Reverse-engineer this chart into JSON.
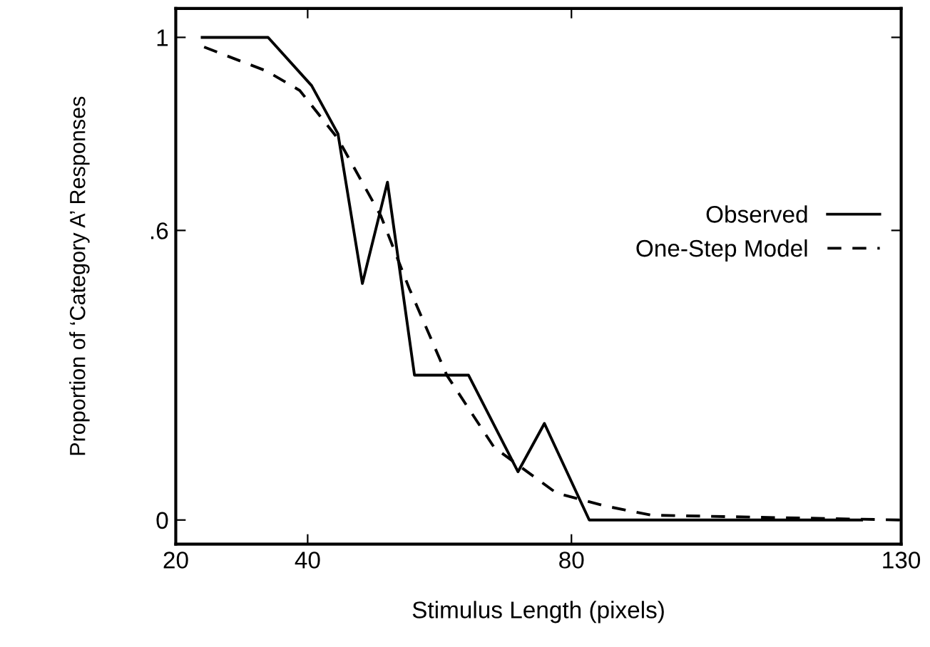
{
  "chart_data": {
    "type": "line",
    "xlabel": "Stimulus Length (pixels)",
    "ylabel": "Proportion of ‘Category A’ Responses",
    "xlim": [
      20,
      130
    ],
    "xticks": [
      20,
      40,
      80,
      130
    ],
    "ylim": [
      -0.05,
      1.06
    ],
    "yticks": [
      0,
      {
        "value": 0.6,
        "label": ".6"
      },
      1
    ],
    "grid": false,
    "legend": "right",
    "marker": "none",
    "series": [
      {
        "name": "Observed",
        "color": "#000000",
        "line_style": "solid",
        "x": [
          24,
          34,
          40.6,
          44.6,
          48.3,
          52.1,
          56.2,
          64.4,
          71.9,
          75.9,
          82.7,
          124
        ],
        "values": [
          1,
          1,
          0.9,
          0.8,
          0.49,
          0.7,
          0.3,
          0.3,
          0.1,
          0.2,
          0,
          0
        ]
      },
      {
        "name": "One-Step Model",
        "color": "#000000",
        "line_style": "dashed",
        "x": [
          24.3,
          33.8,
          38.8,
          44.6,
          51.1,
          55.4,
          61.1,
          68.3,
          77.7,
          84.8,
          92.1,
          130
        ],
        "values": [
          0.98,
          0.93,
          0.89,
          0.79,
          0.63,
          0.48,
          0.3,
          0.15,
          0.056,
          0.03,
          0.01,
          0
        ]
      }
    ]
  }
}
